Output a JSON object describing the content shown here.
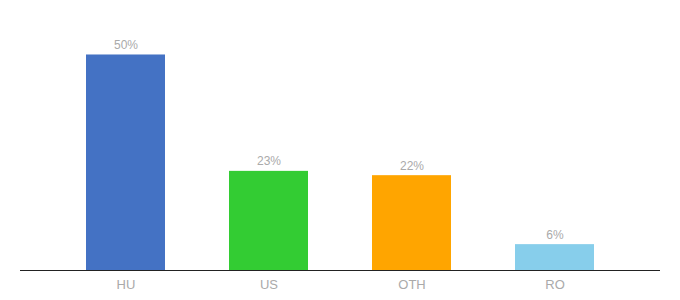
{
  "chart_data": {
    "type": "bar",
    "categories": [
      "HU",
      "US",
      "OTH",
      "RO"
    ],
    "values": [
      50,
      23,
      22,
      6
    ],
    "value_labels": [
      "50%",
      "23%",
      "22%",
      "6%"
    ],
    "colors": [
      "#4472C4",
      "#33CC33",
      "#FFA500",
      "#87CEEB"
    ],
    "ylim": [
      0,
      58
    ],
    "data_labels": true,
    "tick_labels": "x",
    "grid": false
  }
}
